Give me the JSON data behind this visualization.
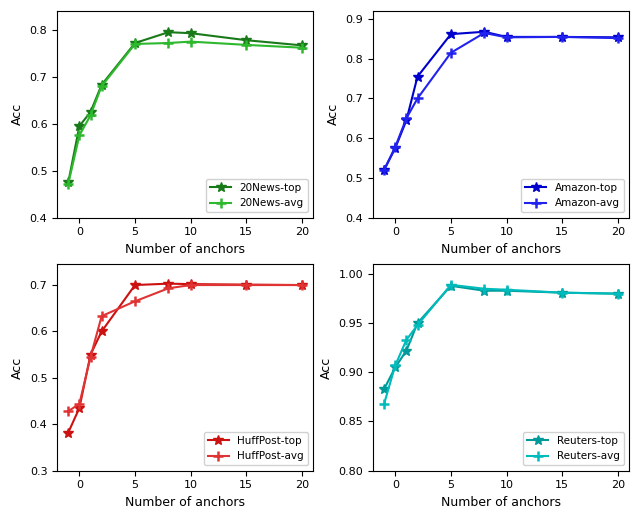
{
  "x": [
    -1,
    0,
    1,
    2,
    5,
    8,
    10,
    15,
    20
  ],
  "xlim": [
    -2,
    21
  ],
  "xticks": [
    0,
    5,
    10,
    15,
    20
  ],
  "subplots": [
    {
      "ylabel": "Acc",
      "xlabel": "Number of anchors",
      "ylim": [
        0.4,
        0.84
      ],
      "yticks": [
        0.4,
        0.5,
        0.6,
        0.7,
        0.8
      ],
      "legend_loc": "lower right",
      "series": [
        {
          "label": "20News-top",
          "color": "#1a7a1a",
          "marker": "*",
          "markersize": 7,
          "linewidth": 1.5,
          "values": [
            0.475,
            0.595,
            0.625,
            0.683,
            0.772,
            0.795,
            0.793,
            0.778,
            0.767
          ]
        },
        {
          "label": "20News-avg",
          "color": "#2db82d",
          "marker": "+",
          "markersize": 7,
          "markeredgewidth": 1.8,
          "linewidth": 1.5,
          "values": [
            0.472,
            0.575,
            0.618,
            0.68,
            0.77,
            0.772,
            0.775,
            0.768,
            0.762
          ]
        }
      ]
    },
    {
      "ylabel": "Acc",
      "xlabel": "Number of anchors",
      "ylim": [
        0.4,
        0.92
      ],
      "yticks": [
        0.4,
        0.5,
        0.6,
        0.7,
        0.8,
        0.9
      ],
      "legend_loc": "lower right",
      "series": [
        {
          "label": "Amazon-top",
          "color": "#0000cc",
          "marker": "*",
          "markersize": 7,
          "linewidth": 1.5,
          "values": [
            0.52,
            0.575,
            0.645,
            0.755,
            0.862,
            0.868,
            0.855,
            0.855,
            0.854
          ]
        },
        {
          "label": "Amazon-avg",
          "color": "#2222ee",
          "marker": "+",
          "markersize": 7,
          "markeredgewidth": 1.8,
          "linewidth": 1.5,
          "values": [
            0.52,
            0.578,
            0.65,
            0.7,
            0.815,
            0.865,
            0.854,
            0.855,
            0.852
          ]
        }
      ]
    },
    {
      "ylabel": "Acc",
      "xlabel": "Number of anchors",
      "ylim": [
        0.3,
        0.745
      ],
      "yticks": [
        0.3,
        0.4,
        0.5,
        0.6,
        0.7
      ],
      "legend_loc": "lower right",
      "series": [
        {
          "label": "HuffPost-top",
          "color": "#cc1111",
          "marker": "*",
          "markersize": 7,
          "linewidth": 1.5,
          "values": [
            0.382,
            0.435,
            0.55,
            0.6,
            0.7,
            0.703,
            0.702,
            0.701,
            0.7
          ]
        },
        {
          "label": "HuffPost-avg",
          "color": "#e03333",
          "marker": "+",
          "markersize": 7,
          "markeredgewidth": 1.8,
          "linewidth": 1.5,
          "values": [
            0.428,
            0.444,
            0.545,
            0.633,
            0.665,
            0.693,
            0.7,
            0.7,
            0.7
          ]
        }
      ]
    },
    {
      "ylabel": "Acc",
      "xlabel": "Number of anchors",
      "ylim": [
        0.8,
        1.01
      ],
      "yticks": [
        0.8,
        0.85,
        0.9,
        0.95,
        1.0
      ],
      "legend_loc": "lower right",
      "series": [
        {
          "label": "Reuters-top",
          "color": "#009999",
          "marker": "*",
          "markersize": 7,
          "linewidth": 1.5,
          "values": [
            0.883,
            0.905,
            0.922,
            0.95,
            0.988,
            0.983,
            0.983,
            0.981,
            0.98
          ]
        },
        {
          "label": "Reuters-avg",
          "color": "#00bbbb",
          "marker": "+",
          "markersize": 7,
          "markeredgewidth": 1.8,
          "linewidth": 1.5,
          "values": [
            0.868,
            0.907,
            0.933,
            0.948,
            0.989,
            0.985,
            0.984,
            0.981,
            0.98
          ]
        }
      ]
    }
  ]
}
